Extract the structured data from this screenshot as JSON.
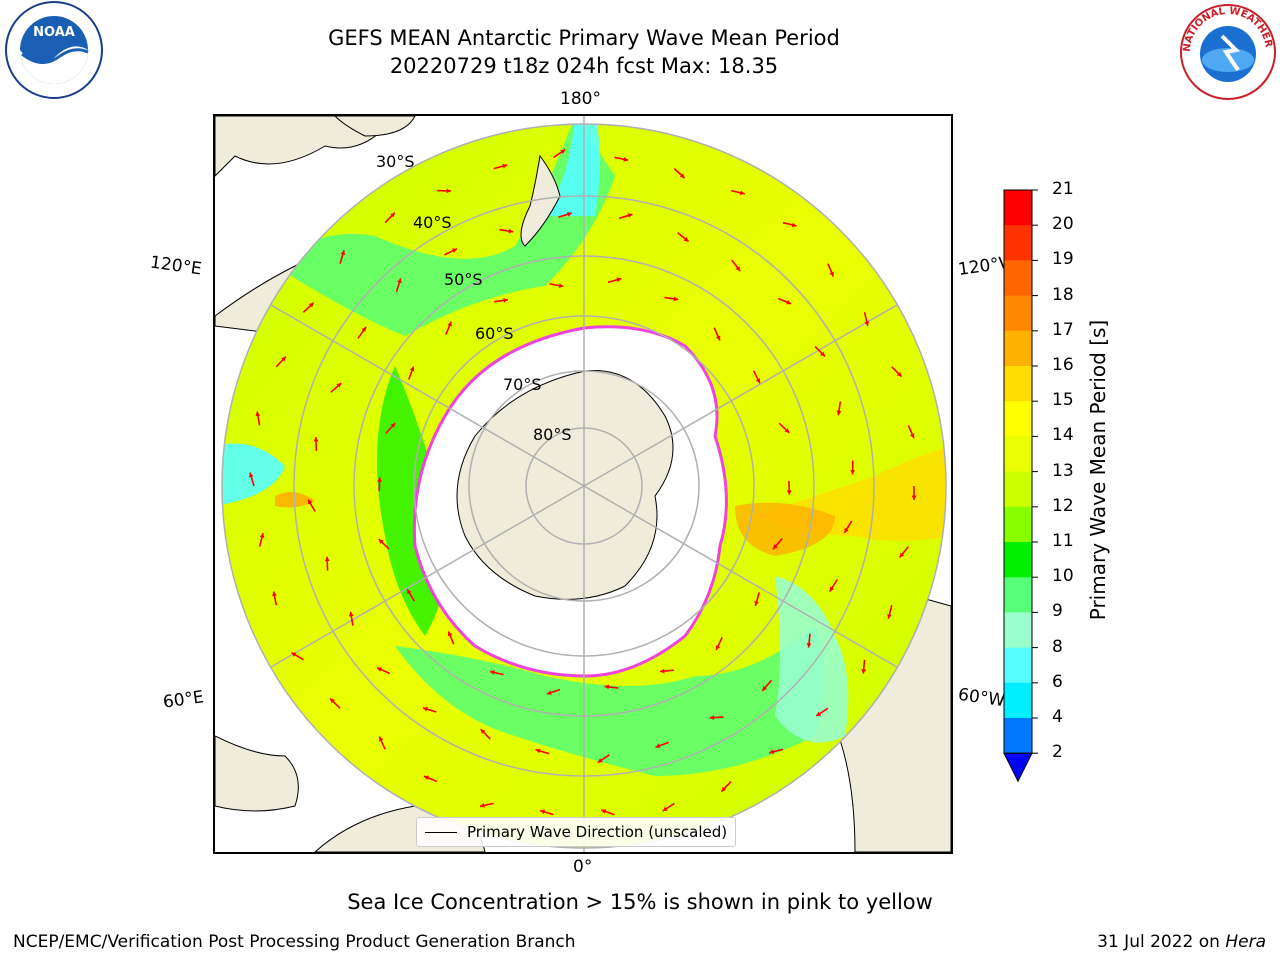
{
  "title": {
    "line1": "GEFS MEAN Antarctic Primary Wave Mean Period",
    "line2": "20220729 t18z 024h fcst   Max: 18.35"
  },
  "map": {
    "projection": "south polar stereographic",
    "longitude_labels": {
      "top": "180°",
      "bottom": "0°",
      "left_upper": "120°E",
      "left_lower": "60°E",
      "right_upper": "120°W",
      "right_lower": "60°W"
    },
    "latitude_labels": [
      "30°S",
      "40°S",
      "50°S",
      "60°S",
      "70°S",
      "80°S"
    ],
    "legend_label": "Primary Wave Direction (unscaled)",
    "colors": {
      "land": "#efecdc",
      "ice": "#ffffff",
      "ice_edge": "#ee44dd",
      "arrow": "#ff0000",
      "grid": "#b0b0b0"
    }
  },
  "colorbar": {
    "label": "Primary Wave Mean Period [s]",
    "ticks": [
      "21",
      "20",
      "19",
      "18",
      "17",
      "16",
      "15",
      "14",
      "13",
      "12",
      "11",
      "10",
      "9",
      "8",
      "6",
      "4",
      "2"
    ],
    "colors_top_to_bottom": [
      "#ff0000",
      "#ff3300",
      "#ff6600",
      "#ff8800",
      "#ffb000",
      "#ffdd00",
      "#ffff00",
      "#eaff00",
      "#ccff00",
      "#88ff00",
      "#00ee00",
      "#55ff77",
      "#99ffcc",
      "#55ffff",
      "#00eeff",
      "#0077ff"
    ],
    "extend_color": "#0000ff"
  },
  "note": "Sea Ice Concentration > 15% is shown in pink to yellow",
  "footer": {
    "left": "NCEP/EMC/Verification Post Processing Product Generation Branch",
    "right_date": "31 Jul 2022 on ",
    "right_machine": "Hera"
  },
  "logos": {
    "noaa": "NOAA",
    "nws": "NATIONAL WEATHER SERVICE"
  }
}
